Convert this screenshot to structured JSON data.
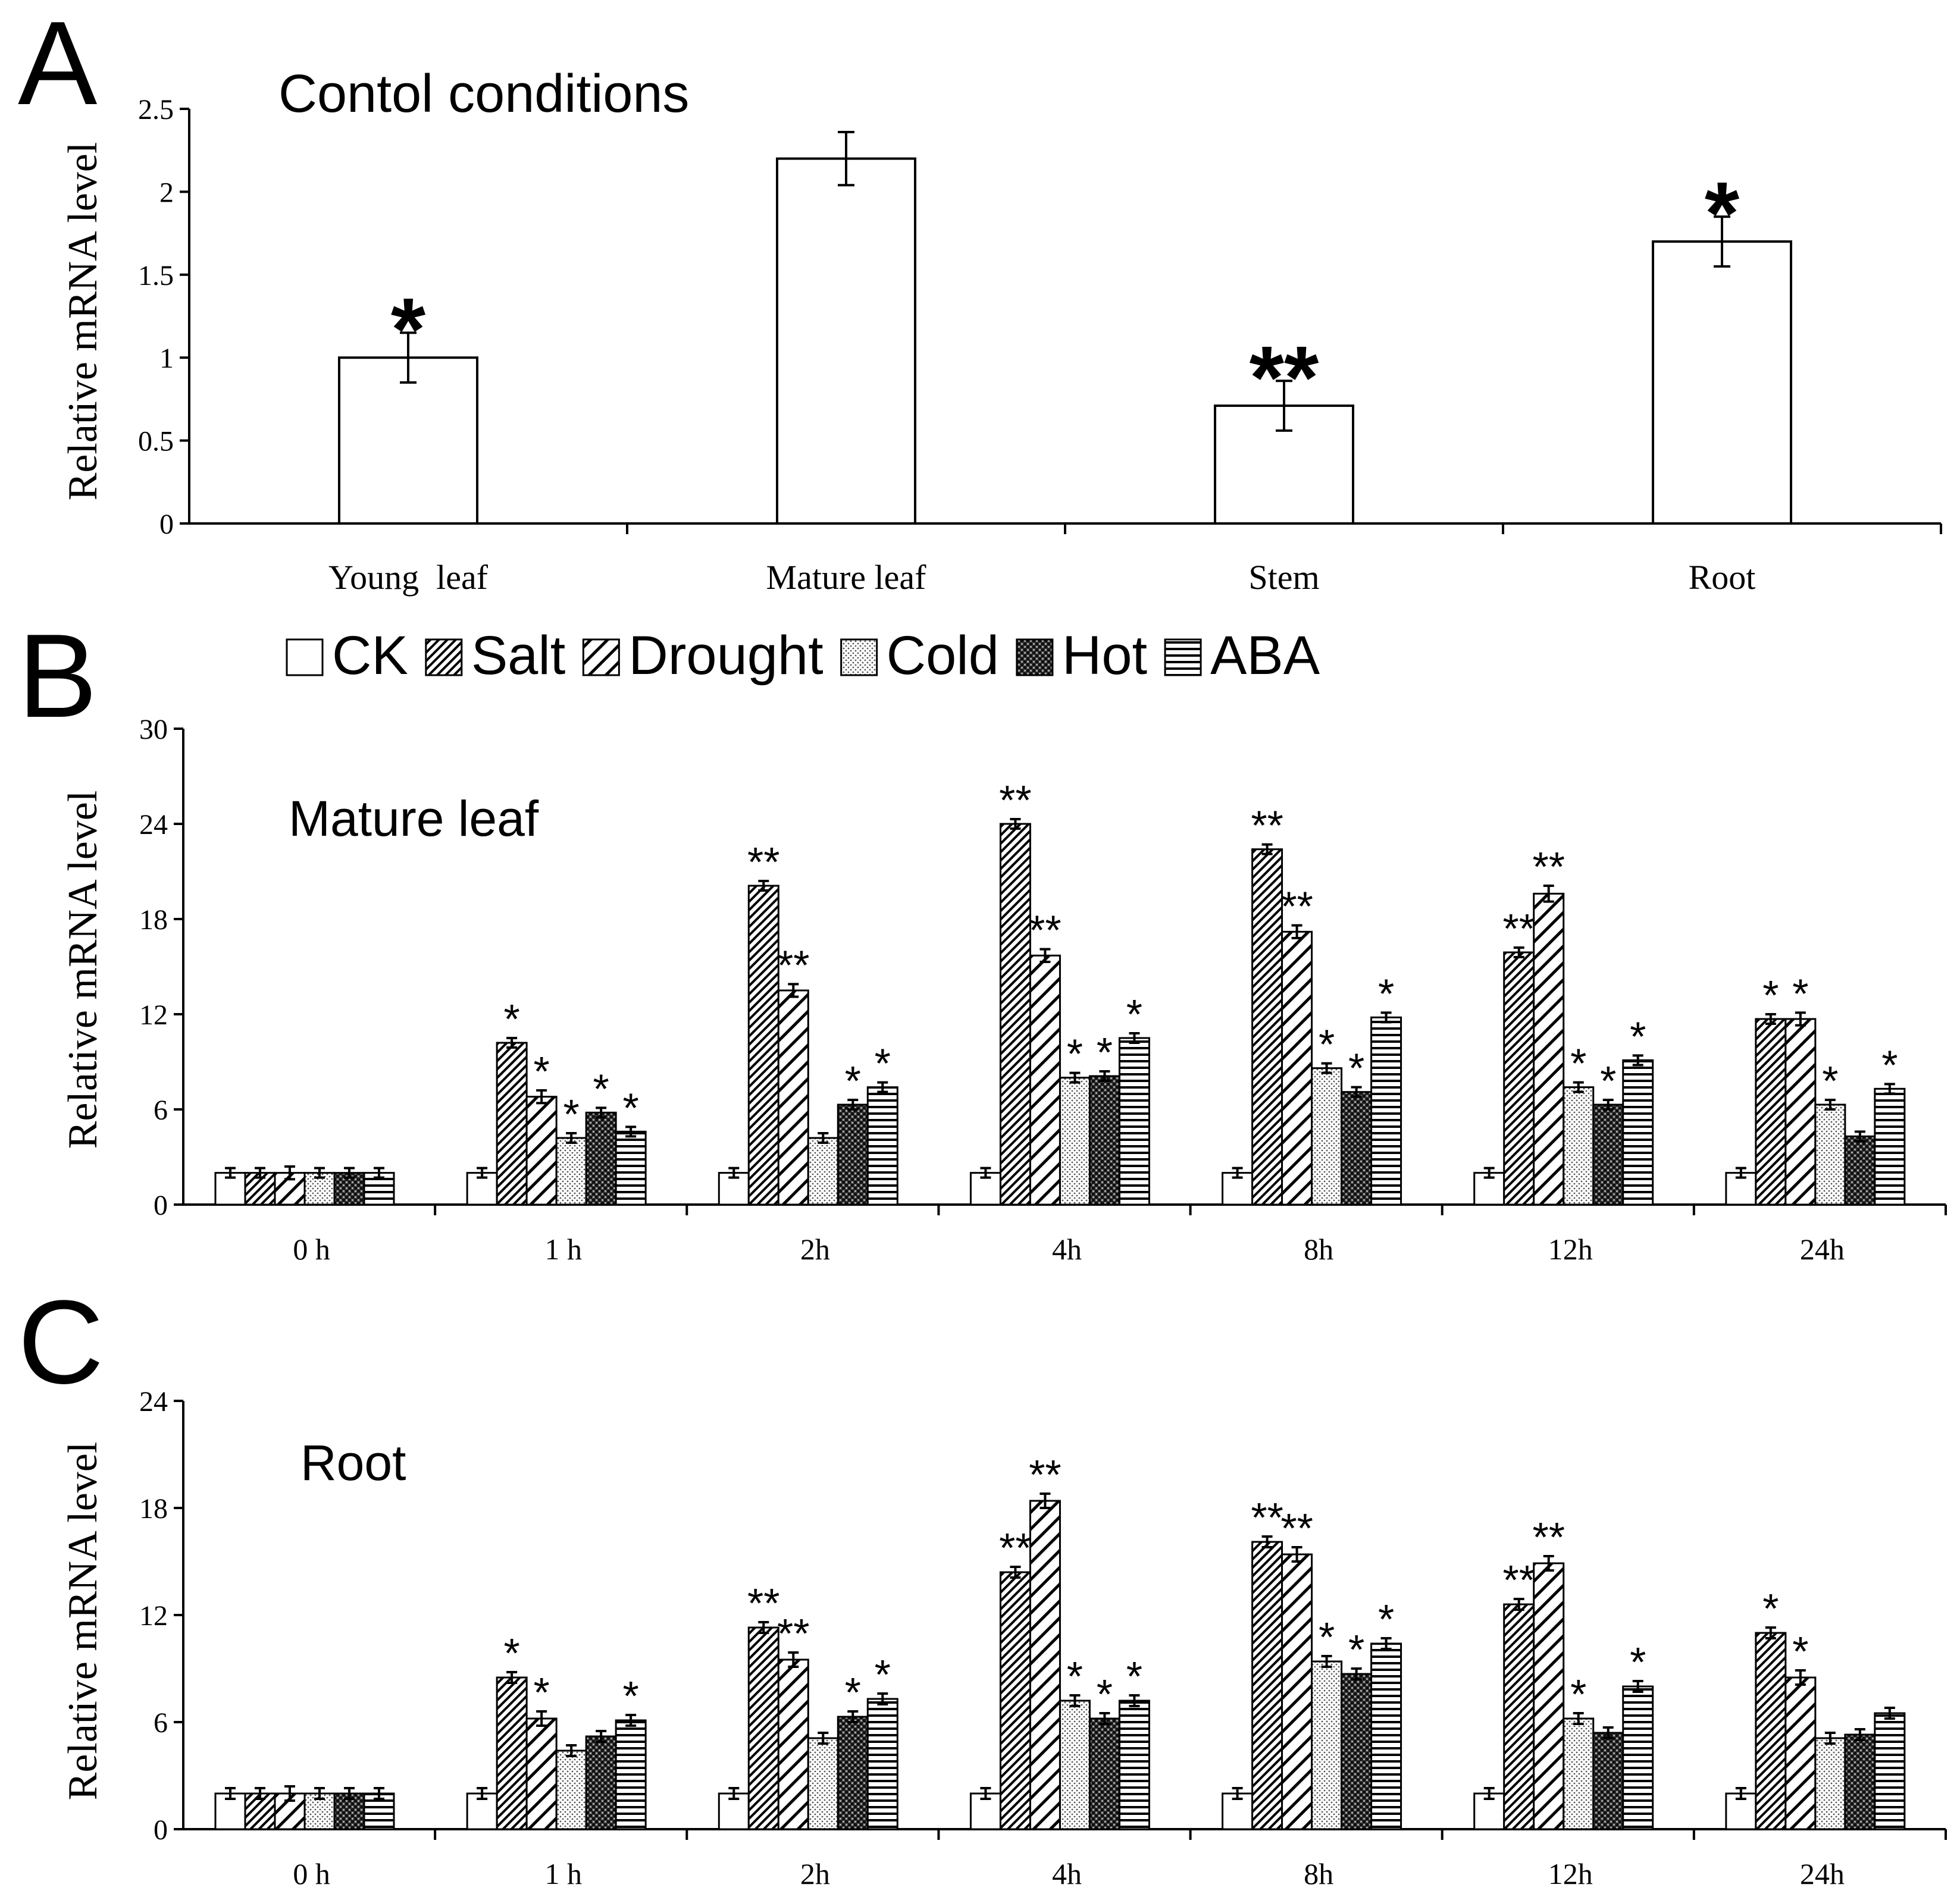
{
  "legend": {
    "items": [
      {
        "name": "CK",
        "pattern": "white"
      },
      {
        "name": "Salt",
        "pattern": "diag-dense"
      },
      {
        "name": "Drought",
        "pattern": "diag-wide"
      },
      {
        "name": "Cold",
        "pattern": "dots"
      },
      {
        "name": "Hot",
        "pattern": "checker"
      },
      {
        "name": "ABA",
        "pattern": "hlines"
      }
    ]
  },
  "chart_data": [
    {
      "panel": "A",
      "type": "bar",
      "title": "Contol conditions",
      "ylabel": "Relative mRNA level",
      "xlabel": "",
      "ylim": [
        0,
        2.5
      ],
      "yticks": [
        "0",
        "0.5",
        "1",
        "1.5",
        "2",
        "2.5"
      ],
      "categories": [
        "Young  leaf",
        "Mature leaf",
        "Stem",
        "Root"
      ],
      "values": [
        1.0,
        2.2,
        0.71,
        1.7
      ],
      "errors": [
        0.15,
        0.16,
        0.15,
        0.15
      ],
      "sig": [
        "*",
        "",
        "**",
        "*"
      ]
    },
    {
      "panel": "B",
      "type": "bar",
      "title": "Mature leaf",
      "ylabel": "Relative mRNA level",
      "xlabel": "",
      "ylim": [
        0,
        30
      ],
      "yticks": [
        "0",
        "6",
        "12",
        "18",
        "24",
        "30"
      ],
      "categories": [
        "0 h",
        "1 h",
        "2h",
        "4h",
        "8h",
        "12h",
        "24h"
      ],
      "series": [
        {
          "name": "CK",
          "values": [
            2,
            2,
            2,
            2,
            2,
            2,
            2
          ],
          "errors": [
            0.3,
            0.3,
            0.3,
            0.3,
            0.3,
            0.3,
            0.3
          ],
          "sig": [
            "",
            "",
            "",
            "",
            "",
            "",
            ""
          ]
        },
        {
          "name": "Salt",
          "values": [
            2,
            10.2,
            20.1,
            24,
            22.4,
            15.9,
            11.7
          ],
          "errors": [
            0.3,
            0.3,
            0.3,
            0.3,
            0.3,
            0.3,
            0.3
          ],
          "sig": [
            "",
            "*",
            "**",
            "**",
            "**",
            "**",
            "*"
          ]
        },
        {
          "name": "Drought",
          "values": [
            2,
            6.8,
            13.5,
            15.7,
            17.2,
            19.6,
            11.7
          ],
          "errors": [
            0.4,
            0.4,
            0.4,
            0.4,
            0.4,
            0.5,
            0.4
          ],
          "sig": [
            "",
            "*",
            "**",
            "**",
            "**",
            "**",
            "*"
          ]
        },
        {
          "name": "Cold",
          "values": [
            2,
            4.2,
            4.2,
            8,
            8.6,
            7.4,
            6.3
          ],
          "errors": [
            0.3,
            0.3,
            0.3,
            0.3,
            0.3,
            0.3,
            0.3
          ],
          "sig": [
            "",
            "*",
            "",
            "*",
            "*",
            "*",
            "*"
          ]
        },
        {
          "name": "Hot",
          "values": [
            2,
            5.8,
            6.3,
            8.1,
            7.1,
            6.3,
            4.3
          ],
          "errors": [
            0.3,
            0.3,
            0.3,
            0.3,
            0.3,
            0.3,
            0.3
          ],
          "sig": [
            "",
            "*",
            "*",
            "*",
            "*",
            "*",
            ""
          ]
        },
        {
          "name": "ABA",
          "values": [
            2,
            4.6,
            7.4,
            10.5,
            11.8,
            9.1,
            7.3
          ],
          "errors": [
            0.3,
            0.3,
            0.3,
            0.3,
            0.3,
            0.3,
            0.3
          ],
          "sig": [
            "",
            "*",
            "*",
            "*",
            "*",
            "*",
            "*"
          ]
        }
      ]
    },
    {
      "panel": "C",
      "type": "bar",
      "title": "Root",
      "ylabel": "Relative mRNA level",
      "xlabel": "",
      "ylim": [
        0,
        24
      ],
      "yticks": [
        "0",
        "6",
        "12",
        "18",
        "24"
      ],
      "categories": [
        "0 h",
        "1 h",
        "2h",
        "4h",
        "8h",
        "12h",
        "24h"
      ],
      "series": [
        {
          "name": "CK",
          "values": [
            2,
            2,
            2,
            2,
            2,
            2,
            2
          ],
          "errors": [
            0.3,
            0.3,
            0.3,
            0.3,
            0.3,
            0.3,
            0.3
          ],
          "sig": [
            "",
            "",
            "",
            "",
            "",
            "",
            ""
          ]
        },
        {
          "name": "Salt",
          "values": [
            2,
            8.5,
            11.3,
            14.4,
            16.1,
            12.6,
            11
          ],
          "errors": [
            0.3,
            0.3,
            0.3,
            0.3,
            0.3,
            0.3,
            0.3
          ],
          "sig": [
            "",
            "*",
            "**",
            "**",
            "**",
            "**",
            "*"
          ]
        },
        {
          "name": "Drought",
          "values": [
            2,
            6.2,
            9.5,
            18.4,
            15.4,
            14.9,
            8.5
          ],
          "errors": [
            0.4,
            0.4,
            0.4,
            0.4,
            0.4,
            0.4,
            0.4
          ],
          "sig": [
            "",
            "*",
            "**",
            "**",
            "**",
            "**",
            "*"
          ]
        },
        {
          "name": "Cold",
          "values": [
            2,
            4.4,
            5.1,
            7.2,
            9.4,
            6.2,
            5.1
          ],
          "errors": [
            0.3,
            0.3,
            0.3,
            0.3,
            0.3,
            0.3,
            0.3
          ],
          "sig": [
            "",
            "",
            "",
            "*",
            "*",
            "*",
            ""
          ]
        },
        {
          "name": "Hot",
          "values": [
            2,
            5.2,
            6.3,
            6.2,
            8.7,
            5.4,
            5.3
          ],
          "errors": [
            0.3,
            0.3,
            0.3,
            0.3,
            0.3,
            0.3,
            0.3
          ],
          "sig": [
            "",
            "",
            "*",
            "*",
            "*",
            "",
            ""
          ]
        },
        {
          "name": "ABA",
          "values": [
            2,
            6.1,
            7.3,
            7.2,
            10.4,
            8,
            6.5
          ],
          "errors": [
            0.3,
            0.3,
            0.3,
            0.3,
            0.3,
            0.3,
            0.3
          ],
          "sig": [
            "",
            "*",
            "*",
            "*",
            "*",
            "*",
            ""
          ]
        }
      ]
    }
  ]
}
